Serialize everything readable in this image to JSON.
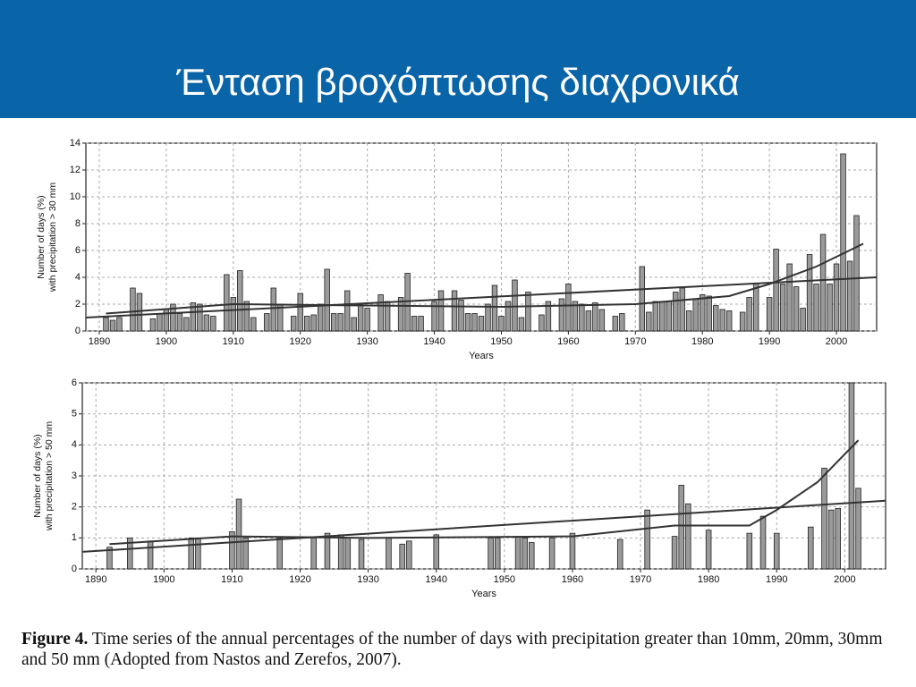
{
  "title": "Ένταση βροχόπτωσης διαχρονικά",
  "caption": {
    "label": "Figure 4.",
    "text": "Time series of the annual percentages of the number of days with precipitation greater than 10mm, 20mm, 30mm and 50 mm (Adopted from Nastos and Zerefos, 2007)."
  },
  "chart_data": [
    {
      "type": "bar",
      "xlabel": "Years",
      "ylabel": [
        "Number of days (%)",
        "with precipitation > 30 mm"
      ],
      "color": "#9a9a9a",
      "line_color": "#333333",
      "grid": true,
      "xlim": [
        1888,
        2006
      ],
      "ylim": [
        0,
        14
      ],
      "xticks": [
        1890,
        1900,
        1910,
        1920,
        1930,
        1940,
        1950,
        1960,
        1970,
        1980,
        1990,
        2000
      ],
      "yticks": [
        0,
        2,
        4,
        6,
        8,
        10,
        12,
        14
      ],
      "x": [
        1891,
        1892,
        1893,
        1895,
        1896,
        1898,
        1899,
        1900,
        1901,
        1902,
        1903,
        1904,
        1905,
        1906,
        1907,
        1909,
        1910,
        1911,
        1912,
        1913,
        1915,
        1916,
        1917,
        1919,
        1920,
        1921,
        1922,
        1923,
        1924,
        1925,
        1926,
        1927,
        1928,
        1929,
        1930,
        1932,
        1933,
        1935,
        1936,
        1937,
        1938,
        1940,
        1941,
        1943,
        1944,
        1945,
        1946,
        1947,
        1948,
        1949,
        1950,
        1951,
        1952,
        1953,
        1954,
        1956,
        1957,
        1959,
        1960,
        1961,
        1962,
        1963,
        1964,
        1965,
        1967,
        1968,
        1971,
        1972,
        1973,
        1974,
        1975,
        1976,
        1977,
        1978,
        1979,
        1980,
        1981,
        1982,
        1983,
        1984,
        1986,
        1987,
        1988,
        1990,
        1991,
        1992,
        1993,
        1994,
        1995,
        1996,
        1997,
        1998,
        1999,
        2000,
        2001,
        2002,
        2003
      ],
      "values": [
        1.0,
        0.8,
        1.0,
        3.2,
        2.8,
        0.9,
        1.3,
        1.6,
        2.0,
        1.3,
        1.0,
        2.1,
        2.0,
        1.2,
        1.1,
        4.2,
        2.5,
        4.5,
        2.2,
        1.0,
        1.3,
        3.2,
        2.0,
        1.1,
        2.8,
        1.1,
        1.2,
        2.0,
        4.6,
        1.3,
        1.3,
        3.0,
        1.0,
        2.0,
        1.7,
        2.7,
        2.2,
        2.5,
        4.3,
        1.1,
        1.1,
        2.2,
        3.0,
        3.0,
        2.3,
        1.3,
        1.3,
        1.1,
        2.0,
        3.4,
        1.1,
        2.2,
        3.8,
        1.0,
        2.9,
        1.2,
        2.2,
        2.4,
        3.5,
        2.2,
        2.0,
        1.5,
        2.1,
        1.6,
        1.1,
        1.3,
        4.8,
        1.4,
        2.2,
        2.2,
        2.2,
        2.9,
        3.2,
        1.5,
        2.4,
        2.7,
        2.6,
        1.9,
        1.6,
        1.5,
        1.4,
        2.5,
        3.5,
        2.5,
        6.1,
        3.5,
        5.0,
        3.3,
        1.7,
        5.7,
        3.5,
        7.2,
        3.5,
        5.0,
        13.2,
        5.2,
        8.6
      ],
      "lines": [
        {
          "x": [
            1888,
            2006
          ],
          "values": [
            1.0,
            4.0
          ]
        },
        {
          "x": [
            1891,
            1910,
            1930,
            1950,
            1970,
            1984,
            1990,
            1997,
            2004
          ],
          "values": [
            1.3,
            2.0,
            1.9,
            1.8,
            2.0,
            2.6,
            3.5,
            4.8,
            6.5
          ]
        }
      ]
    },
    {
      "type": "bar",
      "xlabel": "Years",
      "ylabel": [
        "Number of days (%)",
        "with precipitation > 50 mm"
      ],
      "color": "#9a9a9a",
      "line_color": "#333333",
      "grid": true,
      "xlim": [
        1888,
        2006
      ],
      "ylim": [
        0,
        6
      ],
      "xticks": [
        1890,
        1900,
        1910,
        1920,
        1930,
        1940,
        1950,
        1960,
        1970,
        1980,
        1990,
        2000
      ],
      "yticks": [
        0,
        1,
        2,
        3,
        4,
        5,
        6
      ],
      "x": [
        1892,
        1895,
        1898,
        1904,
        1905,
        1910,
        1911,
        1912,
        1917,
        1922,
        1924,
        1926,
        1927,
        1929,
        1933,
        1935,
        1936,
        1940,
        1948,
        1949,
        1952,
        1953,
        1954,
        1957,
        1960,
        1967,
        1971,
        1975,
        1976,
        1977,
        1980,
        1986,
        1988,
        1990,
        1995,
        1997,
        1998,
        1999,
        2001,
        2002
      ],
      "values": [
        0.7,
        1.0,
        0.9,
        1.0,
        1.0,
        1.2,
        2.25,
        1.0,
        1.0,
        1.0,
        1.15,
        1.1,
        1.0,
        0.95,
        1.0,
        0.8,
        0.9,
        1.1,
        1.0,
        1.0,
        1.05,
        1.0,
        0.85,
        1.0,
        1.15,
        0.95,
        1.9,
        1.05,
        2.7,
        2.1,
        1.25,
        1.15,
        1.7,
        1.15,
        1.35,
        3.25,
        1.9,
        1.95,
        6.0,
        2.6
      ],
      "lines": [
        {
          "x": [
            1888,
            2006
          ],
          "values": [
            0.55,
            2.2
          ]
        },
        {
          "x": [
            1892,
            1910,
            1930,
            1960,
            1975,
            1986,
            1990,
            1996,
            2002
          ],
          "values": [
            0.8,
            1.05,
            1.0,
            1.05,
            1.4,
            1.4,
            1.9,
            2.8,
            4.15
          ]
        }
      ]
    }
  ]
}
